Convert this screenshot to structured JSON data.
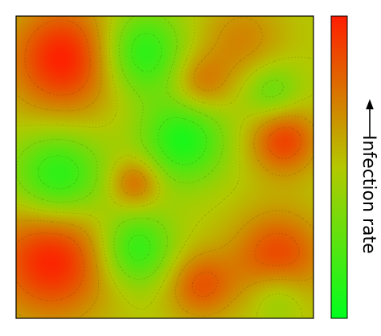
{
  "chart_data": {
    "type": "heatmap",
    "title": "",
    "xlabel": "",
    "ylabel": "",
    "x_ticks": [],
    "y_ticks": [],
    "grid": false,
    "contour_lines": true,
    "colorbar": {
      "label": "Infection rate",
      "arrow": "up",
      "low_color": "#00ff1e",
      "mid_color": "#b4c800",
      "high_color": "#ff1e00",
      "placement": "right"
    },
    "hotspots": [
      {
        "name": "hot",
        "u": 0.16,
        "v": 0.14,
        "strength": 1.0,
        "spread": 0.13
      },
      {
        "name": "hot",
        "u": 0.12,
        "v": 0.8,
        "strength": 1.0,
        "spread": 0.14
      },
      {
        "name": "hot",
        "u": 0.88,
        "v": 0.8,
        "strength": 0.8,
        "spread": 0.11
      },
      {
        "name": "hot",
        "u": 0.9,
        "v": 0.41,
        "strength": 0.8,
        "spread": 0.08
      },
      {
        "name": "hot",
        "u": 0.4,
        "v": 0.55,
        "strength": 0.6,
        "spread": 0.06
      },
      {
        "name": "hot",
        "u": 0.62,
        "v": 0.89,
        "strength": 0.65,
        "spread": 0.08
      },
      {
        "name": "hot",
        "u": 0.62,
        "v": 0.22,
        "strength": 0.5,
        "spread": 0.07
      },
      {
        "name": "hot",
        "u": 0.76,
        "v": 0.08,
        "strength": 0.4,
        "spread": 0.1
      },
      {
        "name": "cool",
        "u": 0.42,
        "v": 0.12,
        "strength": -0.85,
        "spread": 0.1
      },
      {
        "name": "cool",
        "u": 0.14,
        "v": 0.54,
        "strength": -0.9,
        "spread": 0.11
      },
      {
        "name": "cool",
        "u": 0.56,
        "v": 0.41,
        "strength": -0.85,
        "spread": 0.1
      },
      {
        "name": "cool",
        "u": 0.4,
        "v": 0.77,
        "strength": -0.8,
        "spread": 0.09
      },
      {
        "name": "cool",
        "u": 0.86,
        "v": 0.25,
        "strength": -0.5,
        "spread": 0.07
      },
      {
        "name": "cool",
        "u": 0.88,
        "v": 0.92,
        "strength": -0.45,
        "spread": 0.07
      }
    ]
  }
}
